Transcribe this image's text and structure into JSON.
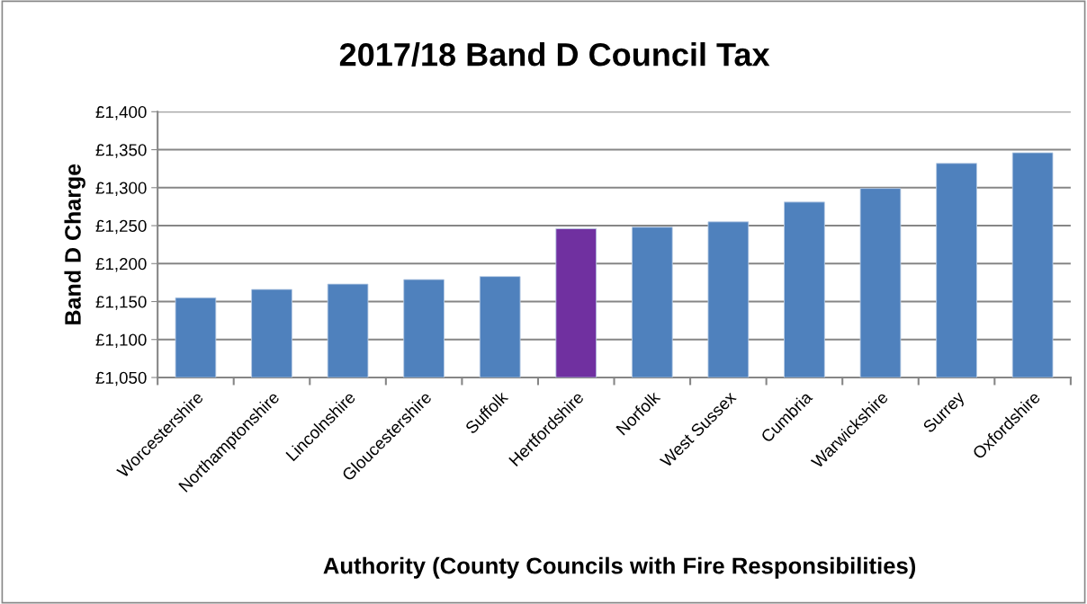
{
  "chart_data": {
    "type": "bar",
    "title": "2017/18 Band D Council Tax",
    "xlabel": "Authority (County Councils with Fire Responsibilities)",
    "ylabel": "Band D Charge",
    "categories": [
      "Worcestershire",
      "Northamptonshire",
      "Lincolnshire",
      "Gloucestershire",
      "Suffolk",
      "Hertfordshire",
      "Norfolk",
      "West Sussex",
      "Cumbria",
      "Warwickshire",
      "Surrey",
      "Oxfordshire"
    ],
    "values": [
      1155,
      1166,
      1173,
      1179,
      1183,
      1246,
      1248,
      1255,
      1281,
      1299,
      1332,
      1346
    ],
    "colors": [
      "#4f81bd",
      "#4f81bd",
      "#4f81bd",
      "#4f81bd",
      "#4f81bd",
      "#7030a0",
      "#4f81bd",
      "#4f81bd",
      "#4f81bd",
      "#4f81bd",
      "#4f81bd",
      "#4f81bd"
    ],
    "ylim": [
      1050,
      1400
    ],
    "yticks": [
      {
        "value": 1050,
        "label": "£1,050"
      },
      {
        "value": 1100,
        "label": "£1,100"
      },
      {
        "value": 1150,
        "label": "£1,150"
      },
      {
        "value": 1200,
        "label": "£1,200"
      },
      {
        "value": 1250,
        "label": "£1,250"
      },
      {
        "value": 1300,
        "label": "£1,300"
      },
      {
        "value": 1350,
        "label": "£1,350"
      },
      {
        "value": 1400,
        "label": "£1,400"
      }
    ],
    "grid": "y"
  }
}
